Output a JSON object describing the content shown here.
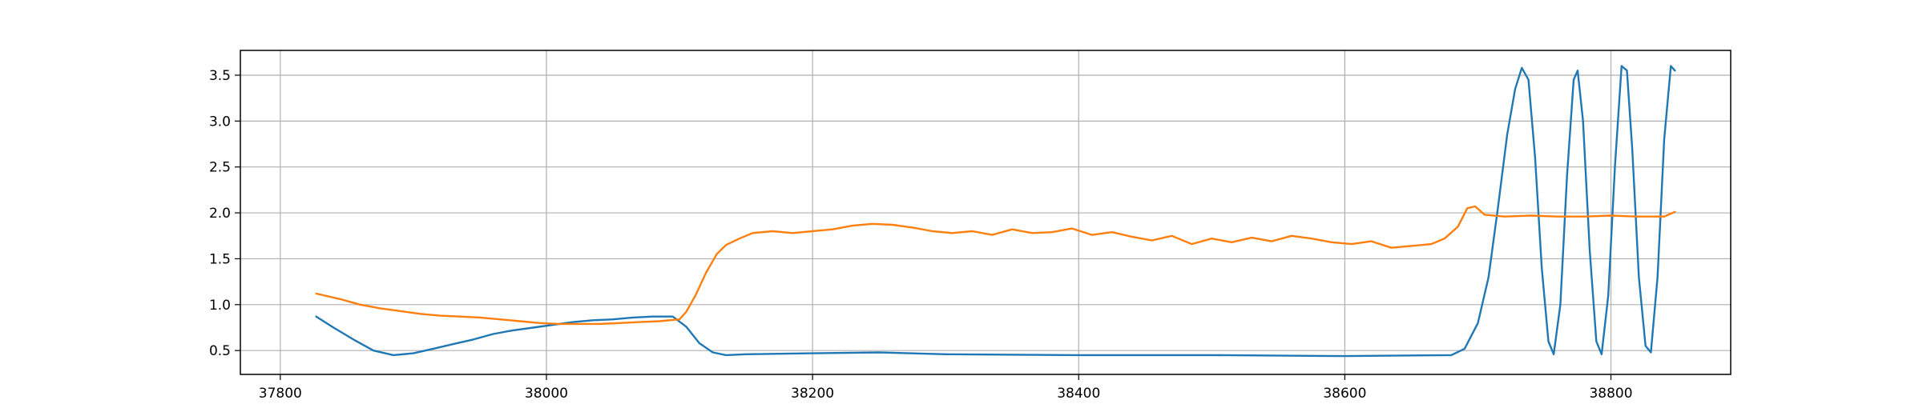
{
  "chart_data": {
    "type": "line",
    "title": "",
    "xlabel": "",
    "ylabel": "",
    "xlim": [
      37770,
      38890
    ],
    "ylim": [
      0.24,
      3.77
    ],
    "grid": true,
    "legend": "none",
    "x_ticks": [
      37800,
      38000,
      38200,
      38400,
      38600,
      38800
    ],
    "x_tick_labels": [
      "37800",
      "38000",
      "38200",
      "38400",
      "38600",
      "38800"
    ],
    "y_ticks": [
      0.5,
      1.0,
      1.5,
      2.0,
      2.5,
      3.0,
      3.5
    ],
    "y_tick_labels": [
      "0.5",
      "1.0",
      "1.5",
      "2.0",
      "2.5",
      "3.0",
      "3.5"
    ],
    "series": [
      {
        "color": "#1f77b4",
        "x": [
          37827,
          37840,
          37855,
          37870,
          37885,
          37900,
          37915,
          37930,
          37945,
          37960,
          37975,
          37990,
          38005,
          38020,
          38035,
          38050,
          38065,
          38080,
          38095,
          38105,
          38115,
          38125,
          38135,
          38150,
          38200,
          38250,
          38300,
          38400,
          38500,
          38600,
          38680,
          38690,
          38700,
          38708,
          38715,
          38722,
          38728,
          38733,
          38738,
          38743,
          38748,
          38753,
          38757,
          38762,
          38767,
          38772,
          38775,
          38779,
          38784,
          38789,
          38793,
          38798,
          38803,
          38808,
          38812,
          38816,
          38821,
          38826,
          38830,
          38835,
          38840,
          38845,
          38848
        ],
        "y": [
          0.87,
          0.75,
          0.62,
          0.5,
          0.45,
          0.47,
          0.52,
          0.57,
          0.62,
          0.68,
          0.72,
          0.75,
          0.78,
          0.81,
          0.83,
          0.84,
          0.86,
          0.87,
          0.87,
          0.76,
          0.58,
          0.48,
          0.45,
          0.46,
          0.47,
          0.48,
          0.46,
          0.45,
          0.45,
          0.44,
          0.45,
          0.52,
          0.8,
          1.3,
          2.05,
          2.85,
          3.35,
          3.58,
          3.45,
          2.6,
          1.4,
          0.6,
          0.46,
          1.0,
          2.4,
          3.45,
          3.55,
          3.0,
          1.6,
          0.6,
          0.46,
          1.1,
          2.5,
          3.6,
          3.55,
          2.7,
          1.3,
          0.55,
          0.48,
          1.3,
          2.8,
          3.6,
          3.55
        ]
      },
      {
        "color": "#ff7f0e",
        "x": [
          37827,
          37845,
          37860,
          37875,
          37890,
          37905,
          37920,
          37935,
          37950,
          37965,
          37980,
          37995,
          38010,
          38025,
          38040,
          38055,
          38070,
          38085,
          38100,
          38105,
          38112,
          38120,
          38128,
          38135,
          38145,
          38155,
          38170,
          38185,
          38200,
          38215,
          38230,
          38245,
          38260,
          38275,
          38290,
          38305,
          38320,
          38335,
          38350,
          38365,
          38380,
          38395,
          38410,
          38425,
          38440,
          38455,
          38470,
          38485,
          38500,
          38515,
          38530,
          38545,
          38560,
          38575,
          38590,
          38605,
          38620,
          38635,
          38650,
          38665,
          38675,
          38685,
          38692,
          38698,
          38705,
          38720,
          38740,
          38760,
          38780,
          38800,
          38820,
          38840,
          38848
        ],
        "y": [
          1.12,
          1.06,
          1.0,
          0.96,
          0.93,
          0.9,
          0.88,
          0.87,
          0.86,
          0.84,
          0.82,
          0.8,
          0.79,
          0.79,
          0.79,
          0.8,
          0.81,
          0.82,
          0.84,
          0.92,
          1.1,
          1.35,
          1.55,
          1.65,
          1.72,
          1.78,
          1.8,
          1.78,
          1.8,
          1.82,
          1.86,
          1.88,
          1.87,
          1.84,
          1.8,
          1.78,
          1.8,
          1.76,
          1.82,
          1.78,
          1.79,
          1.83,
          1.76,
          1.79,
          1.74,
          1.7,
          1.75,
          1.66,
          1.72,
          1.68,
          1.73,
          1.69,
          1.75,
          1.72,
          1.68,
          1.66,
          1.69,
          1.62,
          1.64,
          1.66,
          1.72,
          1.85,
          2.05,
          2.07,
          1.98,
          1.96,
          1.97,
          1.96,
          1.96,
          1.97,
          1.96,
          1.96,
          2.01
        ]
      }
    ]
  }
}
